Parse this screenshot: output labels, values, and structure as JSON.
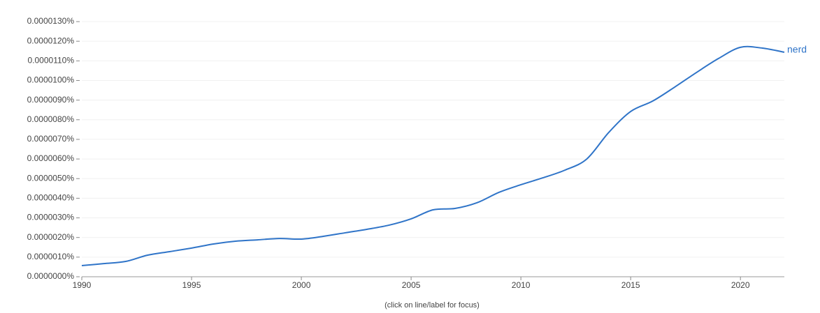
{
  "chart_data": {
    "type": "line",
    "x": [
      1990,
      1991,
      1992,
      1993,
      1994,
      1995,
      1996,
      1997,
      1998,
      1999,
      2000,
      2001,
      2002,
      2003,
      2004,
      2005,
      2006,
      2007,
      2008,
      2009,
      2010,
      2011,
      2012,
      2013,
      2014,
      2015,
      2016,
      2017,
      2018,
      2019,
      2020,
      2021,
      2022
    ],
    "series": [
      {
        "name": "nerd",
        "color": "#2f74c8",
        "values": [
          5.7e-07,
          6.7e-07,
          7.8e-07,
          1.1e-06,
          1.28e-06,
          1.46e-06,
          1.67e-06,
          1.81e-06,
          1.88e-06,
          1.95e-06,
          1.92e-06,
          2.06e-06,
          2.24e-06,
          2.42e-06,
          2.63e-06,
          2.95e-06,
          3.41e-06,
          3.48e-06,
          3.77e-06,
          4.3e-06,
          4.69e-06,
          5.04e-06,
          5.43e-06,
          6e-06,
          7.35e-06,
          8.42e-06,
          8.95e-06,
          9.66e-06,
          1.041e-05,
          1.112e-05,
          1.169e-05,
          1.165e-05,
          1.144e-05
        ]
      }
    ],
    "xlim": [
      1990,
      2022
    ],
    "xticks": [
      1990,
      1995,
      2000,
      2005,
      2010,
      2015,
      2020
    ],
    "ylim": [
      0,
      1.3e-05
    ],
    "yticks": [
      {
        "value": 0,
        "label": "0.0000000%"
      },
      {
        "value": 1e-06,
        "label": "0.0000010%"
      },
      {
        "value": 2e-06,
        "label": "0.0000020%"
      },
      {
        "value": 3e-06,
        "label": "0.0000030%"
      },
      {
        "value": 4e-06,
        "label": "0.0000040%"
      },
      {
        "value": 5e-06,
        "label": "0.0000050%"
      },
      {
        "value": 6e-06,
        "label": "0.0000060%"
      },
      {
        "value": 7e-06,
        "label": "0.0000070%"
      },
      {
        "value": 8e-06,
        "label": "0.0000080%"
      },
      {
        "value": 9e-06,
        "label": "0.0000090%"
      },
      {
        "value": 1e-05,
        "label": "0.0000100%"
      },
      {
        "value": 1.1e-05,
        "label": "0.0000110%"
      },
      {
        "value": 1.2e-05,
        "label": "0.0000120%"
      },
      {
        "value": 1.3e-05,
        "label": "0.0000130%"
      }
    ],
    "grid": true,
    "caption": "(click on line/label for focus)"
  }
}
